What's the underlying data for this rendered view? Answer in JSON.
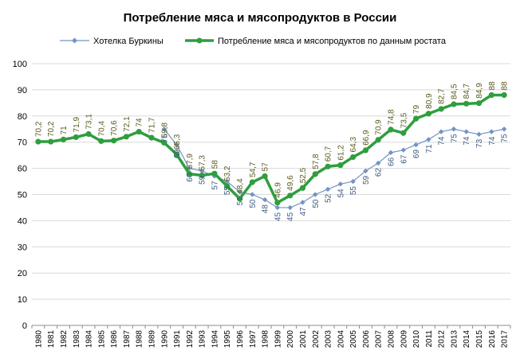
{
  "chart_data": {
    "type": "line",
    "title": "Потребление мяса и мясопродуктов в России",
    "xlabel": "",
    "ylabel": "",
    "ylim": [
      0,
      100
    ],
    "yticks": [
      0,
      10,
      20,
      30,
      40,
      50,
      60,
      70,
      80,
      90,
      100
    ],
    "grid": true,
    "legend_position": "top",
    "categories": [
      "1980",
      "1981",
      "1982",
      "1983",
      "1984",
      "1985",
      "1986",
      "1987",
      "1988",
      "1989",
      "1990",
      "1991",
      "1992",
      "1993",
      "1994",
      "1995",
      "1996",
      "1997",
      "1998",
      "1999",
      "2000",
      "2001",
      "2002",
      "2003",
      "2004",
      "2005",
      "2006",
      "2007",
      "2008",
      "2009",
      "2010",
      "2011",
      "2012",
      "2013",
      "2014",
      "2015",
      "2016",
      "2017"
    ],
    "series": [
      {
        "name": "Хотелка Буркины",
        "color": "#7393c4",
        "marker": "diamond",
        "values": [
          null,
          null,
          null,
          null,
          null,
          null,
          null,
          null,
          null,
          null,
          75,
          69,
          60,
          59,
          57,
          55,
          51,
          50,
          48,
          45,
          45,
          47,
          50,
          52,
          54,
          55,
          59,
          62,
          66,
          67,
          69,
          71,
          74,
          75,
          74,
          73,
          74,
          75
        ],
        "labels": [
          null,
          null,
          null,
          null,
          null,
          null,
          null,
          null,
          null,
          null,
          "75",
          "69",
          "60",
          "59",
          "57",
          "55",
          "51",
          "50",
          "48",
          "45",
          "45",
          "47",
          "50",
          "52",
          "54",
          "55",
          "59",
          "62",
          "66",
          "67",
          "69",
          "71",
          "74",
          "75",
          "74",
          "73",
          "74",
          "75"
        ]
      },
      {
        "name": "Потребление  мяса и мясопродуктов по данным ростата",
        "color": "#2e9e3e",
        "marker": "circle",
        "values": [
          70.2,
          70.2,
          71,
          71.9,
          73.1,
          70.4,
          70.6,
          72.1,
          74,
          71.7,
          69.8,
          65.3,
          57.9,
          57.3,
          58,
          53.2,
          48.4,
          54.7,
          57,
          46.9,
          49.6,
          52.5,
          57.8,
          60.7,
          61.2,
          64.3,
          66.9,
          70.9,
          74.8,
          73.5,
          79,
          80.9,
          82.7,
          84.5,
          84.7,
          84.9,
          88,
          88
        ],
        "labels": [
          "70,2",
          "70,2",
          "71",
          "71,9",
          "73,1",
          "70,4",
          "70,6",
          "72,1",
          "74",
          "71,7",
          "69,8",
          "65,3",
          "57,9",
          "57,3",
          "58",
          "53,2",
          "48,4",
          "54,7",
          "57",
          "46,9",
          "49,6",
          "52,5",
          "57,8",
          "60,7",
          "61,2",
          "64,3",
          "66,9",
          "70,9",
          "74,8",
          "73,5",
          "79",
          "80,9",
          "82,7",
          "84,5",
          "84,7",
          "84,9",
          "88",
          "88"
        ]
      }
    ]
  }
}
